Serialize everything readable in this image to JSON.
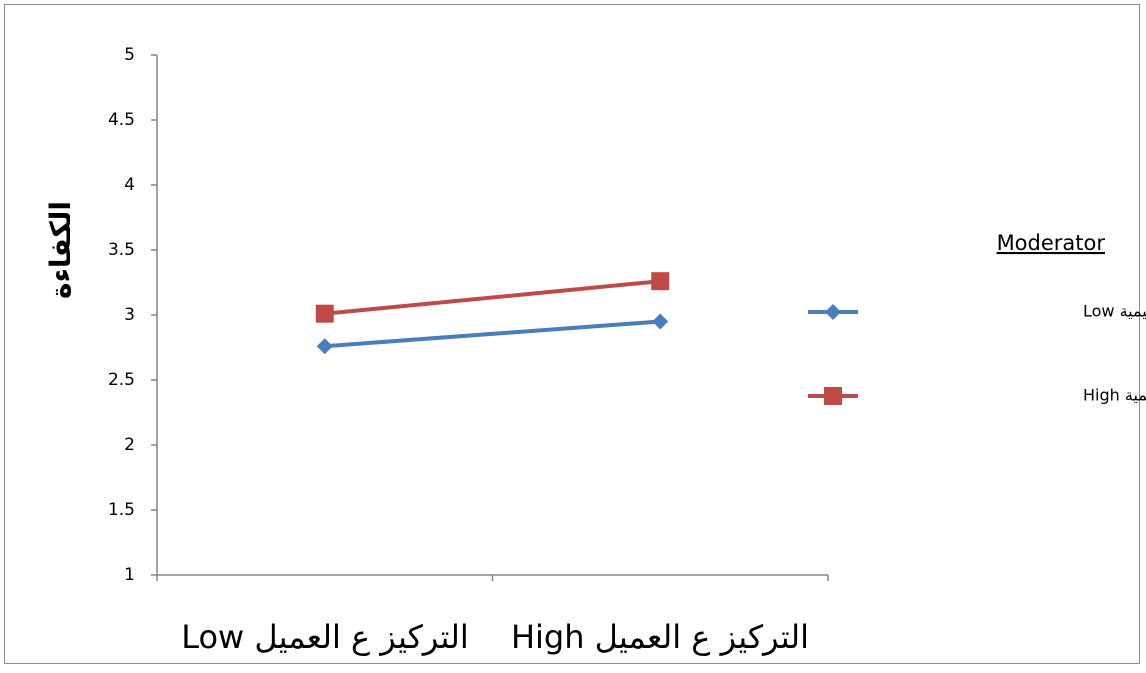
{
  "chart_data": {
    "type": "line",
    "ylabel": "الكفاءة",
    "xlabel": "",
    "ylim": [
      1,
      5
    ],
    "yticks": [
      1,
      1.5,
      2,
      2.5,
      3,
      3.5,
      4,
      4.5,
      5
    ],
    "ytick_labels": [
      "1",
      "1.5",
      "2",
      "2.5",
      "3",
      "3.5",
      "4",
      "4.5",
      "5"
    ],
    "categories": [
      "التركيز ع العميل Low",
      "التركيز ع العميل High"
    ],
    "grid": false,
    "legend_title": "Moderator",
    "legend_position": "right",
    "series": [
      {
        "name": "القيم التنظيمية Low",
        "values": [
          2.76,
          2.95
        ],
        "color": "#4a7ebb",
        "marker": "diamond"
      },
      {
        "name": "القيم التنظيمية High",
        "values": [
          3.01,
          3.26
        ],
        "color": "#be4b48",
        "marker": "square"
      }
    ]
  }
}
